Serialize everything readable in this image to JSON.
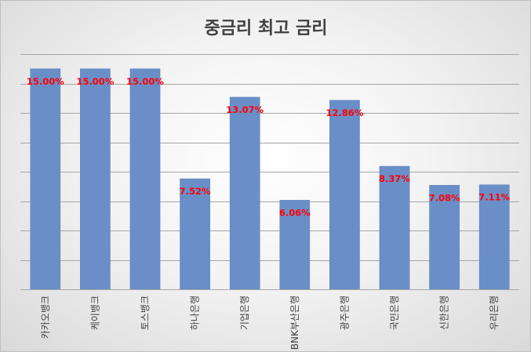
{
  "chart_data": {
    "type": "bar",
    "title": "중금리 최고 금리",
    "categories": [
      "카카오뱅크",
      "케이뱅크",
      "토스뱅크",
      "하나은행",
      "기업은행",
      "BNK부산은행",
      "광주은행",
      "국민은행",
      "신한은행",
      "우리은행"
    ],
    "values": [
      15.0,
      15.0,
      15.0,
      7.52,
      13.07,
      6.06,
      12.86,
      8.37,
      7.08,
      7.11
    ],
    "data_labels": [
      "15.00%",
      "15.00%",
      "15.00%",
      "7.52%",
      "13.07%",
      "6.06%",
      "12.86%",
      "8.37%",
      "7.08%",
      "7.11%"
    ],
    "ylim": [
      0,
      16
    ],
    "ytick_step": 2,
    "grid": true,
    "legend": "none",
    "xlabel": "",
    "ylabel": "",
    "colors": {
      "bar": "#6a8fc8",
      "bar_edge": "#5a7fb9",
      "label": "#ff0000",
      "grid": "#a6a6a6",
      "axis": "#a6a6a6"
    }
  }
}
